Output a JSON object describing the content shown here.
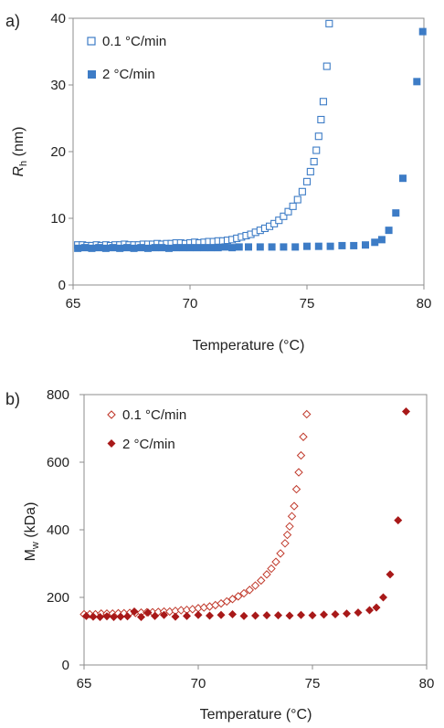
{
  "panels": [
    {
      "label": "a)"
    },
    {
      "label": "b)"
    }
  ],
  "chart_data": [
    {
      "type": "scatter",
      "xlabel": "Temperature (°C)",
      "ylabel": "Rh (nm)",
      "ylabel_main": "R",
      "ylabel_sub": "h",
      "ylabel_unit": " (nm)",
      "xlim": [
        65,
        80
      ],
      "ylim": [
        0,
        40
      ],
      "xticks": [
        "65",
        "70",
        "75",
        "80"
      ],
      "yticks": [
        "0",
        "10",
        "20",
        "30",
        "40"
      ],
      "legend_position": "top-left",
      "series": [
        {
          "name": "0.1 °C/min",
          "marker": "square-open",
          "color": "#3d7cc6",
          "x": [
            65.2,
            65.4,
            65.6,
            65.8,
            66.0,
            66.2,
            66.4,
            66.6,
            66.8,
            67.0,
            67.2,
            67.4,
            67.6,
            67.8,
            68.0,
            68.2,
            68.4,
            68.6,
            68.8,
            69.0,
            69.2,
            69.4,
            69.6,
            69.8,
            70.0,
            70.2,
            70.4,
            70.6,
            70.8,
            71.0,
            71.2,
            71.4,
            71.6,
            71.8,
            72.0,
            72.2,
            72.4,
            72.6,
            72.8,
            73.0,
            73.2,
            73.4,
            73.6,
            73.8,
            74.0,
            74.2,
            74.4,
            74.6,
            74.8,
            75.0,
            75.15,
            75.3,
            75.4,
            75.5,
            75.6,
            75.7,
            75.85,
            75.95
          ],
          "y": [
            6.0,
            6.0,
            5.9,
            5.9,
            6.0,
            5.9,
            6.0,
            5.9,
            6.0,
            6.0,
            6.1,
            6.0,
            6.0,
            6.0,
            6.1,
            6.1,
            6.1,
            6.2,
            6.1,
            6.2,
            6.2,
            6.3,
            6.3,
            6.2,
            6.3,
            6.4,
            6.3,
            6.4,
            6.5,
            6.5,
            6.6,
            6.6,
            6.7,
            6.8,
            7.0,
            7.2,
            7.4,
            7.6,
            7.9,
            8.2,
            8.5,
            8.8,
            9.2,
            9.7,
            10.3,
            11.0,
            11.8,
            12.8,
            14.0,
            15.5,
            17.0,
            18.5,
            20.2,
            22.3,
            24.8,
            27.5,
            32.8,
            39.2
          ]
        },
        {
          "name": "2 °C/min",
          "marker": "square-filled",
          "color": "#3d7cc6",
          "x": [
            65.2,
            65.5,
            65.8,
            66.1,
            66.4,
            66.7,
            67.0,
            67.3,
            67.6,
            67.9,
            68.2,
            68.5,
            68.8,
            69.1,
            69.4,
            69.7,
            70.0,
            70.3,
            70.6,
            70.9,
            71.2,
            71.5,
            71.8,
            72.1,
            72.5,
            73.0,
            73.5,
            74.0,
            74.5,
            75.0,
            75.5,
            76.0,
            76.5,
            77.0,
            77.5,
            77.9,
            78.2,
            78.5,
            78.8,
            79.1,
            79.7,
            79.95
          ],
          "y": [
            5.5,
            5.6,
            5.5,
            5.6,
            5.5,
            5.6,
            5.5,
            5.6,
            5.5,
            5.6,
            5.5,
            5.6,
            5.6,
            5.5,
            5.6,
            5.6,
            5.6,
            5.6,
            5.6,
            5.6,
            5.6,
            5.7,
            5.6,
            5.7,
            5.7,
            5.7,
            5.7,
            5.7,
            5.7,
            5.8,
            5.8,
            5.8,
            5.9,
            5.9,
            6.0,
            6.4,
            6.8,
            8.2,
            10.8,
            16.0,
            30.5,
            38.0
          ]
        }
      ]
    },
    {
      "type": "scatter",
      "xlabel": "Temperature (°C)",
      "ylabel": "Mw (kDa)",
      "ylabel_main": "M",
      "ylabel_sub": "w",
      "ylabel_unit": " (kDa)",
      "xlim": [
        65,
        80
      ],
      "ylim": [
        0,
        800
      ],
      "xticks": [
        "65",
        "70",
        "75",
        "80"
      ],
      "yticks": [
        "0",
        "200",
        "400",
        "600",
        "800"
      ],
      "legend_position": "top-left",
      "series": [
        {
          "name": "0.1 °C/min",
          "marker": "diamond-open",
          "color": "#c0392b",
          "x": [
            65.0,
            65.25,
            65.5,
            65.75,
            66.0,
            66.25,
            66.5,
            66.75,
            67.0,
            67.25,
            67.5,
            67.75,
            68.0,
            68.25,
            68.5,
            68.75,
            69.0,
            69.25,
            69.5,
            69.75,
            70.0,
            70.25,
            70.5,
            70.75,
            71.0,
            71.25,
            71.5,
            71.75,
            72.0,
            72.25,
            72.5,
            72.75,
            73.0,
            73.2,
            73.4,
            73.6,
            73.8,
            73.9,
            74.0,
            74.1,
            74.2,
            74.3,
            74.4,
            74.5,
            74.6,
            74.75
          ],
          "y": [
            150,
            150,
            150,
            152,
            152,
            152,
            153,
            153,
            154,
            154,
            155,
            156,
            156,
            157,
            158,
            158,
            160,
            162,
            163,
            165,
            168,
            170,
            173,
            177,
            182,
            188,
            195,
            203,
            212,
            222,
            235,
            250,
            268,
            285,
            305,
            330,
            360,
            385,
            410,
            440,
            470,
            520,
            570,
            620,
            675,
            742
          ]
        },
        {
          "name": "2 °C/min",
          "marker": "diamond-filled",
          "color": "#a81919",
          "x": [
            65.1,
            65.4,
            65.7,
            66.0,
            66.3,
            66.6,
            66.9,
            67.2,
            67.5,
            67.8,
            68.1,
            68.5,
            69.0,
            69.5,
            70.0,
            70.5,
            71.0,
            71.5,
            72.0,
            72.5,
            73.0,
            73.5,
            74.0,
            74.5,
            75.0,
            75.5,
            76.0,
            76.5,
            77.0,
            77.5,
            77.8,
            78.1,
            78.4,
            78.75,
            79.1
          ],
          "y": [
            145,
            143,
            142,
            144,
            142,
            143,
            144,
            158,
            142,
            155,
            145,
            148,
            143,
            145,
            148,
            146,
            148,
            150,
            145,
            146,
            147,
            147,
            146,
            148,
            147,
            149,
            150,
            152,
            155,
            162,
            170,
            200,
            268,
            428,
            750
          ]
        }
      ]
    }
  ]
}
